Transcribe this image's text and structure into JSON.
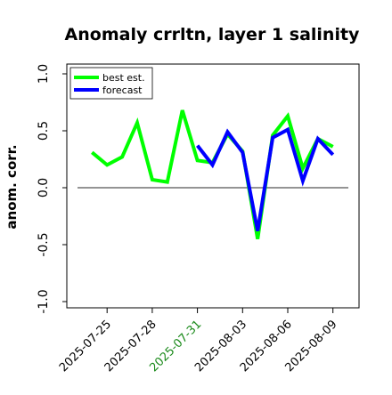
{
  "chart_data": {
    "type": "line",
    "title": "Anomaly crrltn, layer 1 salinity",
    "xlabel": "",
    "ylabel": "anom. corr.",
    "ylim": [
      -1.0,
      1.0
    ],
    "yticks": [
      "-1.0",
      "-0.5",
      "0.0",
      "0.5",
      "1.0"
    ],
    "ytick_values": [
      -1.0,
      -0.5,
      0.0,
      0.5,
      1.0
    ],
    "xtick_dates": [
      "2025-07-25",
      "2025-07-28",
      "2025-07-31",
      "2025-08-03",
      "2025-08-06",
      "2025-08-09"
    ],
    "highlighted_xtick": "2025-07-31",
    "highlight_color": "#1a8a1a",
    "xlim": [
      "2025-07-23",
      "2025-08-11"
    ],
    "reference_line_y": 0.0,
    "legend_position": "top-left",
    "grid": false,
    "series": [
      {
        "name": "best est.",
        "color": "#00ff00",
        "x": [
          "2025-07-24",
          "2025-07-25",
          "2025-07-26",
          "2025-07-27",
          "2025-07-28",
          "2025-07-29",
          "2025-07-30",
          "2025-07-31",
          "2025-08-01",
          "2025-08-02",
          "2025-08-03",
          "2025-08-04",
          "2025-08-05",
          "2025-08-06",
          "2025-08-07",
          "2025-08-08",
          "2025-08-09"
        ],
        "values": [
          0.31,
          0.2,
          0.27,
          0.57,
          0.07,
          0.05,
          0.68,
          0.24,
          0.22,
          0.47,
          0.32,
          -0.45,
          0.46,
          0.63,
          0.17,
          0.43,
          0.36
        ]
      },
      {
        "name": "forecast",
        "color": "#0000ff",
        "x": [
          "2025-07-31",
          "2025-08-01",
          "2025-08-02",
          "2025-08-03",
          "2025-08-04",
          "2025-08-05",
          "2025-08-06",
          "2025-08-07",
          "2025-08-08",
          "2025-08-09"
        ],
        "values": [
          0.37,
          0.2,
          0.49,
          0.31,
          -0.38,
          0.44,
          0.51,
          0.06,
          0.43,
          0.29
        ]
      }
    ]
  }
}
